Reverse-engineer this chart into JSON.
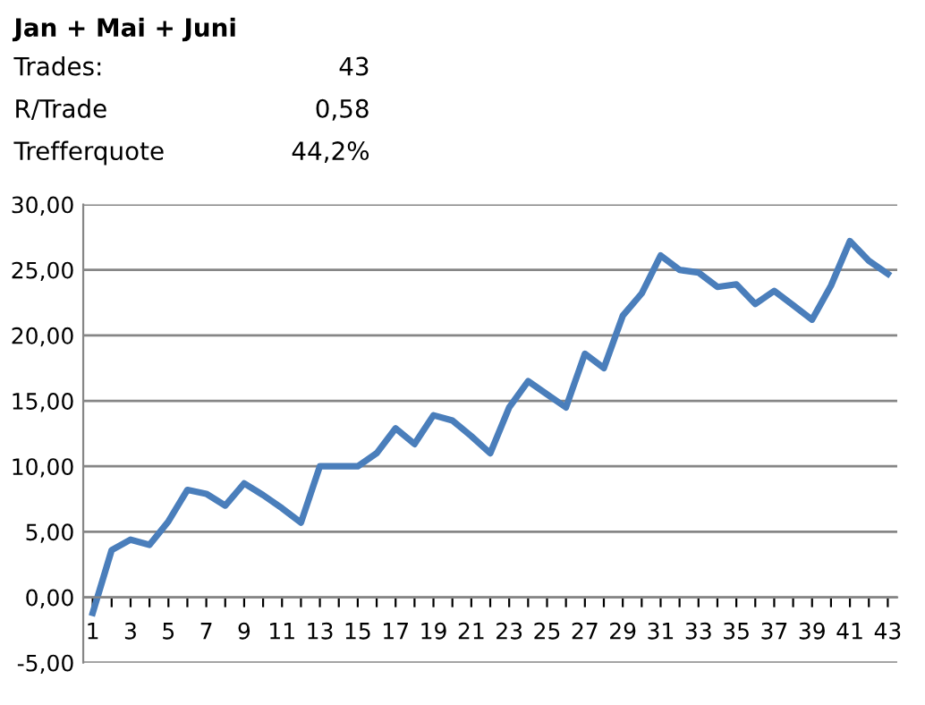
{
  "chart_data": {
    "type": "line",
    "title": "Jan + Mai + Juni",
    "annotations": [
      "Trades:",
      "43",
      "R/Trade",
      "0,58",
      "Trefferquote",
      "44,2%"
    ],
    "categories": [
      "1",
      null,
      "3",
      null,
      "5",
      null,
      "7",
      null,
      "9",
      null,
      "11",
      null,
      "13",
      null,
      "15",
      null,
      "17",
      null,
      "19",
      null,
      "21",
      null,
      "23",
      null,
      "25",
      null,
      "27",
      null,
      "29",
      null,
      "31",
      null,
      "33",
      null,
      "35",
      null,
      "37",
      null,
      "39",
      null,
      "41",
      null,
      "43"
    ],
    "series": [
      {
        "color": "#4a7ebb",
        "values": [
          -1.2,
          3.6,
          4.4,
          4.0,
          5.8,
          8.2,
          7.9,
          7.0,
          8.7,
          7.8,
          6.8,
          5.7,
          10.0,
          10.0,
          10.0,
          11.0,
          12.9,
          11.7,
          13.9,
          13.5,
          12.3,
          11.0,
          14.5,
          16.5,
          15.5,
          14.5,
          18.6,
          17.5,
          21.5,
          23.2,
          26.1,
          25.0,
          24.8,
          23.7,
          23.9,
          22.4,
          23.4,
          22.3,
          21.2,
          23.8,
          27.2,
          25.7,
          24.7
        ]
      }
    ],
    "ylim": [
      -5,
      30
    ],
    "yticks": [
      {
        "value": -5,
        "label": "-5,00"
      },
      {
        "value": 0,
        "label": "0,00"
      },
      {
        "value": 5,
        "label": "5,00"
      },
      {
        "value": 10,
        "label": "10,00"
      },
      {
        "value": 15,
        "label": "15,00"
      },
      {
        "value": 20,
        "label": "20,00"
      },
      {
        "value": 25,
        "label": "25,00"
      },
      {
        "value": 30,
        "label": "30,00"
      }
    ],
    "grid": "y",
    "marker": "none",
    "line_style": "solid"
  }
}
